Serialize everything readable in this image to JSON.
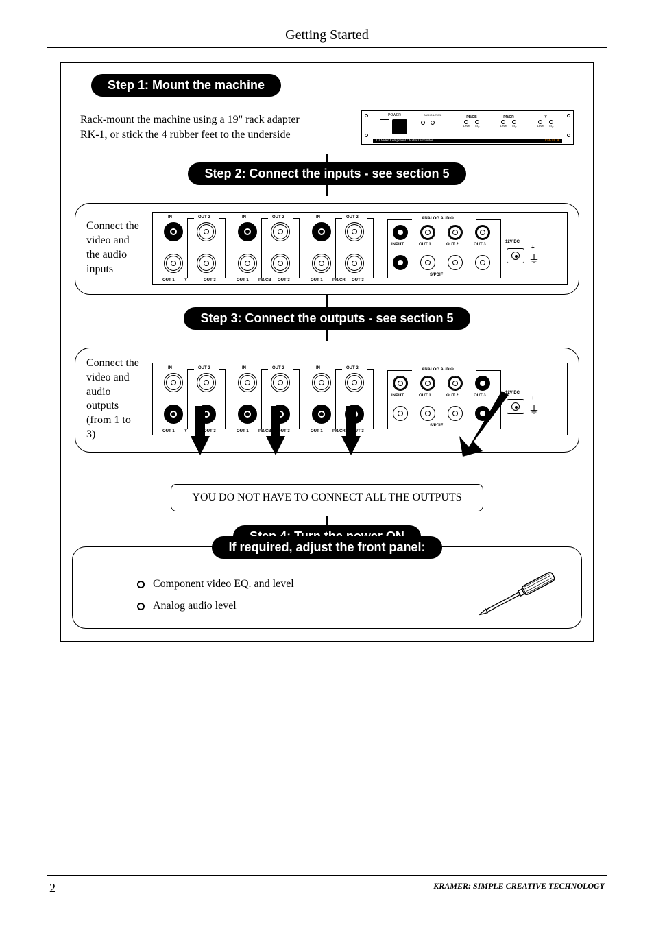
{
  "header": {
    "title": "Getting Started"
  },
  "step1": {
    "pill": "Step 1: Mount the machine",
    "text_line1": "Rack-mount the machine using a 19\" rack adapter",
    "text_line2": "RK-1, or stick the 4 rubber feet to the underside",
    "front_panel": {
      "power_label": "POWER",
      "audio_level_label": "AUDIO LEVEL",
      "knob_groups": [
        {
          "top": "PB/CB",
          "l": "Level",
          "r": "EQ."
        },
        {
          "top": "PR/CR",
          "l": "Level",
          "r": "EQ."
        },
        {
          "top": "Y",
          "l": "Level",
          "r": "EQ."
        }
      ],
      "strip_left": "1:3 Video Component / Audio Distributor",
      "strip_right": "VM-30CA"
    }
  },
  "step2": {
    "pill": "Step 2: Connect the inputs - see section 5",
    "text": "Connect the video and the audio inputs"
  },
  "step3": {
    "pill": "Step 3: Connect the outputs - see section 5",
    "text": "Connect the video and audio outputs (from 1 to 3)",
    "note": "YOU DO NOT HAVE TO CONNECT ALL THE OUTPUTS"
  },
  "step4": {
    "pill": "Step 4: Turn the power ON"
  },
  "adjust": {
    "pill": "If required, adjust the front panel:",
    "items": [
      "Component video EQ. and level",
      "Analog audio level"
    ]
  },
  "rear_panel": {
    "bnc_groups": [
      {
        "label": "Y"
      },
      {
        "label": "PB/CB"
      },
      {
        "label": "PR/CR"
      }
    ],
    "bnc_labels": {
      "in": "IN",
      "out1": "OUT 1",
      "out2": "OUT 2",
      "out3": "OUT 3"
    },
    "analog_audio": "ANALOG AUDIO",
    "spdif": "S/PDIF",
    "aa_labels": {
      "input": "INPUT",
      "out1": "OUT 1",
      "out2": "OUT 2",
      "out3": "OUT 3"
    },
    "power_label": "12V DC"
  },
  "footer": {
    "page": "2",
    "brand": "KRAMER:  SIMPLE CREATIVE TECHNOLOGY"
  },
  "colors": {
    "fg": "#000000",
    "bg": "#ffffff"
  }
}
